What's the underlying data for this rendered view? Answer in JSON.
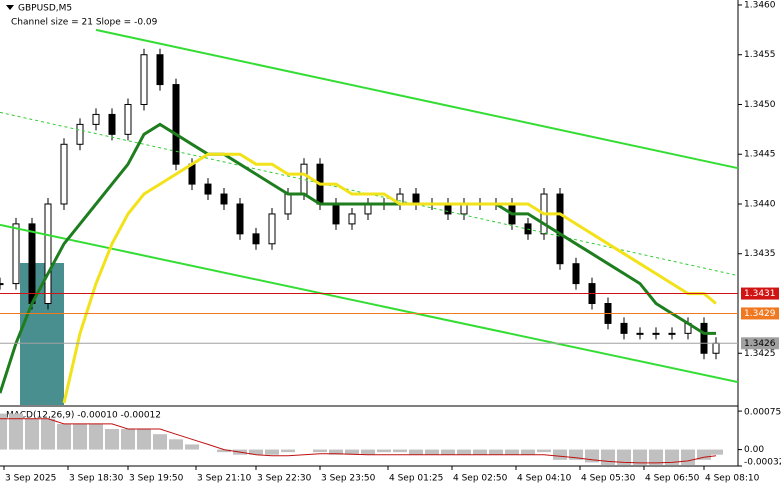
{
  "chart_data": [
    {
      "type": "candlestick",
      "title": "GBPUSD,M5",
      "subtitle": "Channel size = 21 Slope = -0.09",
      "x": [
        0,
        4,
        8,
        12,
        16,
        20,
        24,
        28,
        32,
        36,
        40,
        44,
        48,
        52,
        56,
        60,
        64,
        68,
        72,
        76,
        80,
        84,
        88,
        92,
        96,
        100,
        104,
        108,
        112,
        116,
        120,
        124,
        128,
        132,
        136,
        140,
        144,
        148,
        152,
        156,
        160,
        164,
        168,
        172,
        176,
        179
      ],
      "values": [
        1.3432,
        1.3438,
        1.343,
        1.344,
        1.3446,
        1.3448,
        1.3449,
        1.3447,
        1.345,
        1.3455,
        1.3452,
        1.3444,
        1.3442,
        1.3441,
        1.344,
        1.3437,
        1.3436,
        1.3439,
        1.3441,
        1.3444,
        1.344,
        1.3438,
        1.3439,
        1.344,
        1.344,
        1.3441,
        1.344,
        1.344,
        1.3439,
        1.344,
        1.344,
        1.344,
        1.3438,
        1.3437,
        1.3441,
        1.3434,
        1.3432,
        1.343,
        1.3428,
        1.3427,
        1.3427,
        1.3427,
        1.3427,
        1.3428,
        1.3425,
        1.3426
      ],
      "color": "#000000",
      "series": [
        {
          "color": "#1e7d1e",
          "values": [
            1.3421,
            1.3426,
            1.343,
            1.3433,
            1.3436,
            1.3438,
            1.344,
            1.3442,
            1.3444,
            1.3447,
            1.3448,
            1.3447,
            1.3446,
            1.3445,
            1.3445,
            1.3444,
            1.3443,
            1.3442,
            1.3441,
            1.3441,
            1.344,
            1.344,
            1.344,
            1.344,
            1.344,
            1.344,
            1.344,
            1.344,
            1.344,
            1.344,
            1.344,
            1.344,
            1.3439,
            1.3439,
            1.3438,
            1.3437,
            1.3436,
            1.3435,
            1.3434,
            1.3433,
            1.3432,
            1.343,
            1.3429,
            1.3428,
            1.3427,
            1.3427
          ]
        },
        {
          "color": "#f2e21a",
          "values": [
            null,
            null,
            null,
            null,
            1.342,
            1.3427,
            1.3432,
            1.3436,
            1.3439,
            1.3441,
            1.3442,
            1.3443,
            1.3444,
            1.3445,
            1.3445,
            1.3445,
            1.3444,
            1.3444,
            1.3443,
            1.3443,
            1.3442,
            1.3442,
            1.3441,
            1.3441,
            1.3441,
            1.344,
            1.344,
            1.344,
            1.344,
            1.344,
            1.344,
            1.344,
            1.344,
            1.344,
            1.3439,
            1.3439,
            1.3438,
            1.3437,
            1.3436,
            1.3435,
            1.3434,
            1.3433,
            1.3432,
            1.3431,
            1.3431,
            1.343
          ]
        }
      ],
      "channel": [
        {
          "x": [
            24,
            184.5
          ],
          "values": [
            1.34575,
            1.34436
          ],
          "color": "#33dd33",
          "dashed": false
        },
        {
          "x": [
            0,
            184.5
          ],
          "values": [
            1.34379,
            1.34221
          ],
          "color": "#33dd33",
          "dashed": false
        },
        {
          "x": [
            0,
            184.5
          ],
          "values": [
            1.34492,
            1.34328
          ],
          "color": "#33cc33",
          "dashed": true
        }
      ],
      "levels": [
        {
          "value": 1.3431,
          "color": "#d01414",
          "text_color": "#ffffff"
        },
        {
          "value": 1.3429,
          "color": "#f07820",
          "text_color": "#ffffff"
        },
        {
          "value": 1.3426,
          "color": "#a0a0a0",
          "text_color": "#000000"
        }
      ],
      "xlim": [
        0,
        184.5
      ],
      "ylim": [
        1.34198,
        1.34605
      ],
      "yticks": [
        {
          "value": 1.346,
          "label": "1.3460"
        },
        1.3455,
        {
          "value": 1.345,
          "label": "1.3450"
        },
        1.3445,
        {
          "value": 1.344,
          "label": "1.3440"
        },
        1.3435,
        1.3425
      ],
      "xticks": [
        {
          "value": 1,
          "label": "3 Sep 2025"
        },
        {
          "value": 17,
          "label": "3 Sep 18:30"
        },
        {
          "value": 32,
          "label": "3 Sep 19:50"
        },
        {
          "value": 49,
          "label": "3 Sep 21:10"
        },
        {
          "value": 64,
          "label": "3 Sep 22:30"
        },
        {
          "value": 80,
          "label": "3 Sep 23:50"
        },
        {
          "value": 97,
          "label": "4 Sep 01:25"
        },
        {
          "value": 113,
          "label": "4 Sep 02:50"
        },
        {
          "value": 129,
          "label": "4 Sep 04:10"
        },
        {
          "value": 145,
          "label": "4 Sep 05:30"
        },
        {
          "value": 161,
          "label": "4 Sep 06:50"
        },
        {
          "value": 176,
          "label": "4 Sep 08:10"
        }
      ]
    },
    {
      "type": "macd",
      "label": "MACD(12,26,9) -0.00010 -0.00012",
      "x": [
        0,
        4,
        8,
        12,
        16,
        20,
        24,
        28,
        32,
        36,
        40,
        44,
        48,
        52,
        56,
        60,
        64,
        68,
        72,
        76,
        80,
        84,
        88,
        92,
        96,
        100,
        104,
        108,
        112,
        116,
        120,
        124,
        128,
        132,
        136,
        140,
        144,
        148,
        152,
        156,
        160,
        164,
        168,
        172,
        176,
        179
      ],
      "values": [
        0.0007,
        0.0007,
        0.0006,
        0.0006,
        0.0005,
        0.0005,
        0.0005,
        0.0004,
        0.0004,
        0.0004,
        0.0003,
        0.0002,
        0.0001,
        0,
        -5e-05,
        -0.0001,
        -0.0001,
        -0.0001,
        -5e-05,
        0,
        -5e-05,
        -0.0001,
        -0.0001,
        -0.0001,
        -5e-05,
        -5e-05,
        -0.0001,
        -0.0001,
        -0.0001,
        -0.0001,
        -0.0001,
        -0.0001,
        -0.0001,
        -0.0001,
        -5e-05,
        -0.0002,
        -0.0002,
        -0.00025,
        -0.0003,
        -0.0003,
        -0.0003,
        -0.0003,
        -0.0003,
        -0.0003,
        -0.0002,
        -0.0001
      ],
      "color": "#c0c0c0",
      "signal": [
        0.0006,
        0.0006,
        0.0006,
        0.0006,
        0.0005,
        0.0005,
        0.0005,
        0.0005,
        0.0004,
        0.0004,
        0.0004,
        0.0003,
        0.0002,
        0.0001,
        0,
        -5e-05,
        -0.0001,
        -0.00012,
        -0.00012,
        -0.0001,
        -8e-05,
        -8e-05,
        -9e-05,
        -0.0001,
        -0.0001,
        -0.0001,
        -0.0001,
        -0.0001,
        -0.0001,
        -0.0001,
        -0.0001,
        -0.0001,
        -0.0001,
        -0.0001,
        -0.0001,
        -0.00013,
        -0.00016,
        -0.0002,
        -0.00023,
        -0.00025,
        -0.00026,
        -0.00026,
        -0.00025,
        -0.00022,
        -0.00015,
        -0.00012
      ],
      "signal_color": "#c01010",
      "xlim": [
        0,
        184.5
      ],
      "ylim": [
        -0.00032,
        0.00081
      ],
      "yticks": [
        0.00075,
        {
          "value": 0,
          "label": "0.00"
        },
        -0.00032
      ]
    }
  ]
}
